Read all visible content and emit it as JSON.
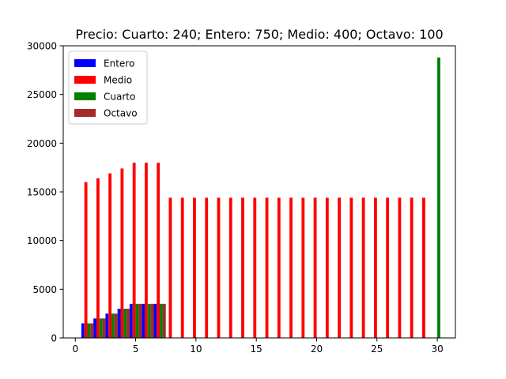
{
  "chart_data": {
    "type": "bar",
    "title": "Precio: Cuarto: 240; Entero: 750; Medio: 400; Octavo: 100",
    "xlabel": "",
    "ylabel": "",
    "xlim": [
      -1,
      31.5
    ],
    "ylim": [
      0,
      30000
    ],
    "xticks": [
      "0",
      "5",
      "10",
      "15",
      "20",
      "25",
      "30"
    ],
    "yticks": [
      "0",
      "5000",
      "10000",
      "15000",
      "20000",
      "25000",
      "30000"
    ],
    "grid": false,
    "legend_position": "top-left",
    "bar_width": 0.25,
    "series": [
      {
        "name": "Entero",
        "color": "#0000ff",
        "offset": -0.375,
        "x": [
          1,
          2,
          3,
          4,
          5,
          6,
          7
        ],
        "values": [
          1500,
          2000,
          2500,
          3000,
          3500,
          3500,
          3500
        ]
      },
      {
        "name": "Medio",
        "color": "#ff0000",
        "offset": -0.125,
        "x": [
          1,
          2,
          3,
          4,
          5,
          6,
          7,
          8,
          9,
          10,
          11,
          12,
          13,
          14,
          15,
          16,
          17,
          18,
          19,
          20,
          21,
          22,
          23,
          24,
          25,
          26,
          27,
          28,
          29
        ],
        "values": [
          16000,
          16400,
          16900,
          17400,
          18000,
          18000,
          18000,
          14400,
          14400,
          14400,
          14400,
          14400,
          14400,
          14400,
          14400,
          14400,
          14400,
          14400,
          14400,
          14400,
          14400,
          14400,
          14400,
          14400,
          14400,
          14400,
          14400,
          14400,
          14400
        ]
      },
      {
        "name": "Cuarto",
        "color": "#008000",
        "offset": 0.125,
        "x": [
          1,
          2,
          3,
          4,
          5,
          6,
          7,
          30
        ],
        "values": [
          1500,
          2000,
          2500,
          3000,
          3500,
          3500,
          3500,
          28800
        ]
      },
      {
        "name": "Octavo",
        "color": "#a52a2a",
        "offset": 0.375,
        "x": [
          1,
          2,
          3,
          4,
          5,
          6,
          7
        ],
        "values": [
          1500,
          2000,
          2500,
          3000,
          3500,
          3500,
          3500
        ]
      }
    ]
  }
}
